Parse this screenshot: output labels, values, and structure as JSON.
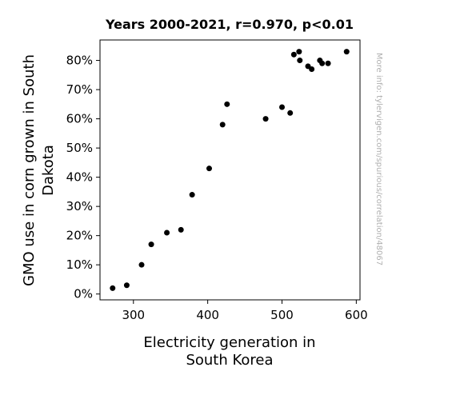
{
  "chart_data": {
    "type": "scatter",
    "title": "Years 2000-2021, r=0.970, p<0.01",
    "xlabel": [
      "Electricity generation in",
      "South Korea"
    ],
    "ylabel": [
      "GMO use in corn grown in South",
      "Dakota"
    ],
    "xlim": [
      255,
      605
    ],
    "ylim": [
      -2,
      87
    ],
    "x_ticks": [
      300,
      400,
      500,
      600
    ],
    "x_tick_labels": [
      "300",
      "400",
      "500",
      "600"
    ],
    "y_ticks": [
      0,
      10,
      20,
      30,
      40,
      50,
      60,
      70,
      80
    ],
    "y_tick_labels": [
      "0%",
      "10%",
      "20%",
      "30%",
      "40%",
      "50%",
      "60%",
      "70%",
      "80%"
    ],
    "grid": false,
    "marker_color": "#000000",
    "points": [
      {
        "x": 272,
        "y": 2
      },
      {
        "x": 291,
        "y": 3
      },
      {
        "x": 311,
        "y": 10
      },
      {
        "x": 324,
        "y": 17
      },
      {
        "x": 345,
        "y": 21
      },
      {
        "x": 364,
        "y": 22
      },
      {
        "x": 379,
        "y": 34
      },
      {
        "x": 402,
        "y": 43
      },
      {
        "x": 420,
        "y": 58
      },
      {
        "x": 426,
        "y": 65
      },
      {
        "x": 478,
        "y": 60
      },
      {
        "x": 500,
        "y": 64
      },
      {
        "x": 511,
        "y": 62
      },
      {
        "x": 516,
        "y": 82
      },
      {
        "x": 523,
        "y": 83
      },
      {
        "x": 524,
        "y": 80
      },
      {
        "x": 535,
        "y": 78
      },
      {
        "x": 540,
        "y": 77
      },
      {
        "x": 551,
        "y": 80
      },
      {
        "x": 554,
        "y": 79
      },
      {
        "x": 562,
        "y": 79
      },
      {
        "x": 587,
        "y": 83
      }
    ]
  },
  "watermark": "More info: tylervigen.com/spurious/correlation/48067"
}
